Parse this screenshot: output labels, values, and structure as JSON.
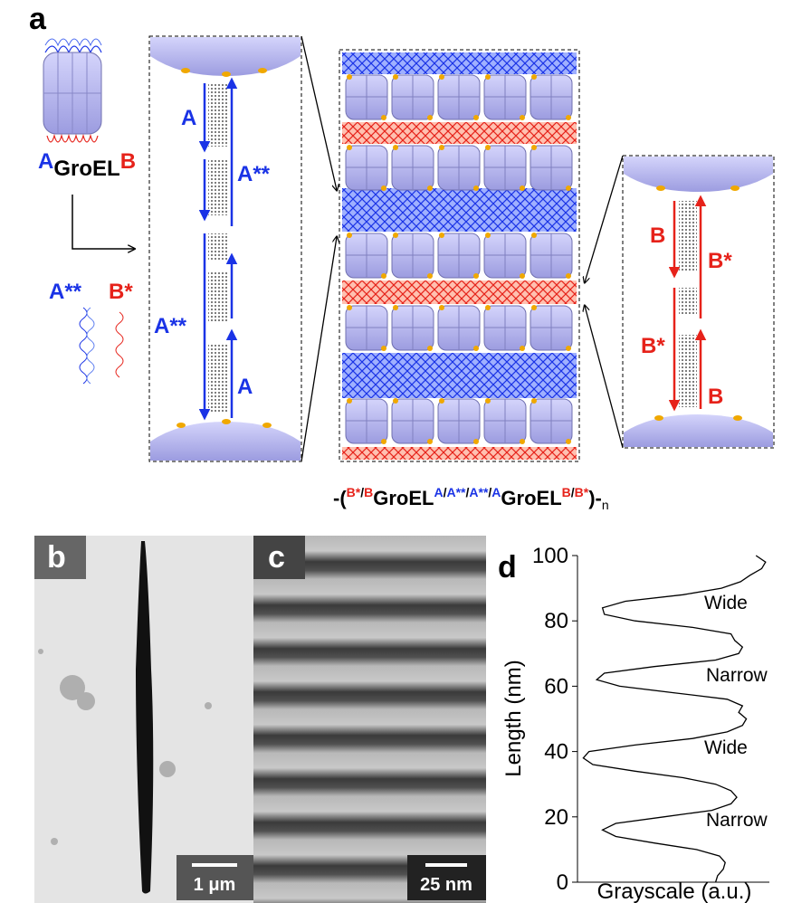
{
  "panel_labels": [
    "a",
    "b",
    "c",
    "d"
  ],
  "panel_a": {
    "groel_label": {
      "pre": "A",
      "main": "GroEL",
      "post": "B"
    },
    "strands": [
      "A**",
      "B*"
    ],
    "box1_labels": [
      "A",
      "A**",
      "A**",
      "A"
    ],
    "box3_labels": [
      "B",
      "B*",
      "B*",
      "B"
    ],
    "formula": [
      "-(",
      "B*",
      "/",
      "B",
      "GroEL",
      "A",
      "/",
      "A**",
      "/",
      "A**",
      "/",
      "A",
      "GroEL",
      "B",
      "/",
      "B*",
      ")-",
      "n"
    ]
  },
  "panel_b": {
    "scale_bar": "1 μm"
  },
  "panel_c": {
    "scale_bar": "25 nm"
  },
  "chart_data": {
    "type": "line",
    "ylabel": "Length (nm)",
    "xlabel": "Grayscale (a.u.)",
    "annotations": [
      "Wide",
      "Narrow",
      "Wide",
      "Narrow"
    ],
    "ylim": [
      0,
      100
    ],
    "yticks": [
      0,
      20,
      40,
      60,
      80,
      100
    ],
    "xlim": [
      0,
      100
    ],
    "color": "#000000",
    "values": [
      0,
      2,
      4,
      6,
      8,
      10,
      12,
      14,
      16,
      18,
      20,
      22,
      24,
      26,
      28,
      30,
      32,
      34,
      36,
      38,
      40,
      42,
      44,
      46,
      48,
      50,
      52,
      54,
      56,
      58,
      60,
      62,
      64,
      66,
      68,
      70,
      72,
      74,
      76,
      78,
      80,
      82,
      84,
      86,
      88,
      90,
      92,
      94,
      96,
      98,
      100
    ],
    "x": [
      72,
      73,
      76,
      77,
      74,
      62,
      40,
      20,
      13,
      20,
      45,
      70,
      80,
      83,
      80,
      72,
      55,
      30,
      8,
      3,
      6,
      30,
      60,
      78,
      86,
      88,
      84,
      86,
      78,
      50,
      22,
      10,
      14,
      40,
      72,
      84,
      86,
      82,
      80,
      60,
      30,
      14,
      13,
      25,
      55,
      75,
      85,
      90,
      96,
      98,
      93
    ]
  }
}
